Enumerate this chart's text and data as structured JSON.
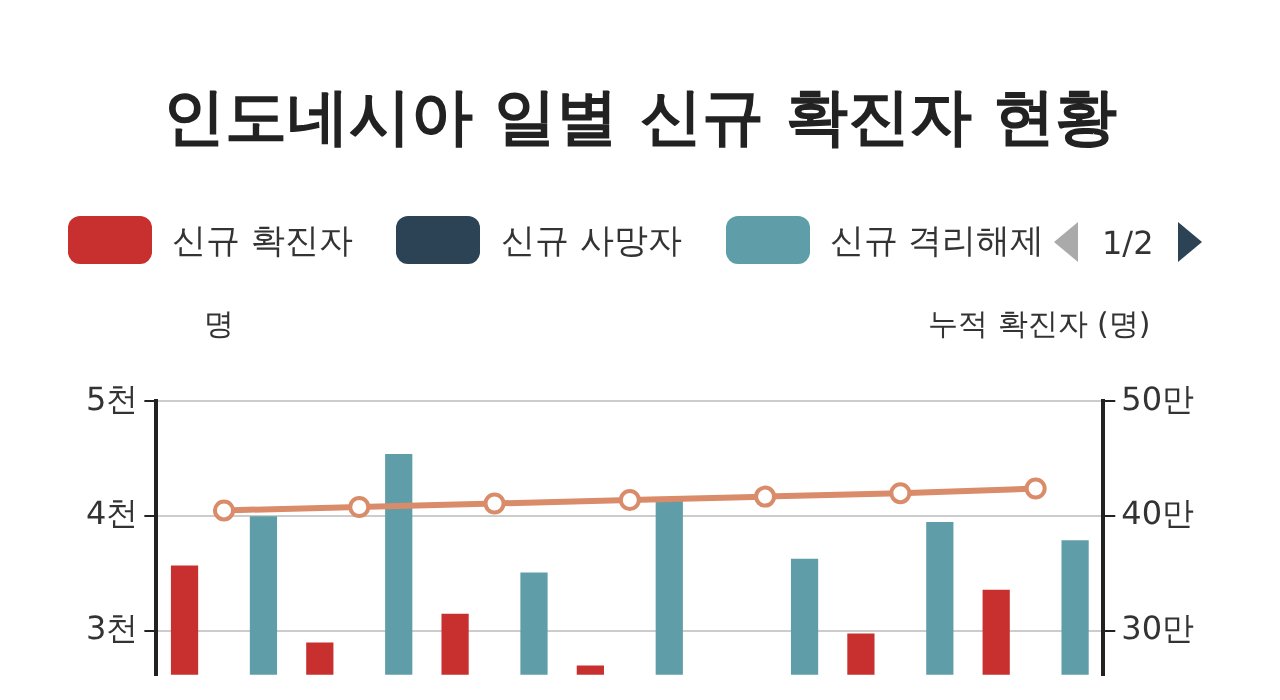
{
  "chart_data": {
    "type": "bar",
    "title": "인도네시아 일별 신규 확진자 현황",
    "ylabel": "명",
    "y2label": "누적 확진자 (명)",
    "categories": [
      null,
      null,
      null,
      null,
      null,
      null,
      null
    ],
    "series": [
      {
        "name": "신규 확진자",
        "color": "#c8302f",
        "values": [
          3.57,
          2.9,
          3.15,
          2.7,
          null,
          2.98,
          3.36
        ]
      },
      {
        "name": "신규 사망자",
        "color": "#2c4355",
        "values": [
          null,
          null,
          null,
          null,
          null,
          null,
          null
        ]
      },
      {
        "name": "신규 격리해제",
        "color": "#5f9ea9",
        "values": [
          4.0,
          4.54,
          3.51,
          4.14,
          3.63,
          3.95,
          3.79
        ]
      },
      {
        "type": "line",
        "axis": "y2",
        "color": "#d98b6a",
        "marker": "circle",
        "values": [
          40.5,
          40.8,
          41.1,
          41.4,
          41.7,
          42.0,
          42.4
        ]
      }
    ],
    "ylim": [
      2.62,
      5
    ],
    "yticks": [
      {
        "value": 3,
        "label": "3천"
      },
      {
        "value": 4,
        "label": "4천"
      },
      {
        "value": 5,
        "label": "5천"
      }
    ],
    "y2lim": [
      26.2,
      50
    ],
    "y2ticks": [
      {
        "value": 30,
        "label": "30만"
      },
      {
        "value": 40,
        "label": "40만"
      },
      {
        "value": 50,
        "label": "50만"
      }
    ],
    "grid": "y",
    "legend": "top",
    "annotations": [
      "1/2"
    ]
  }
}
